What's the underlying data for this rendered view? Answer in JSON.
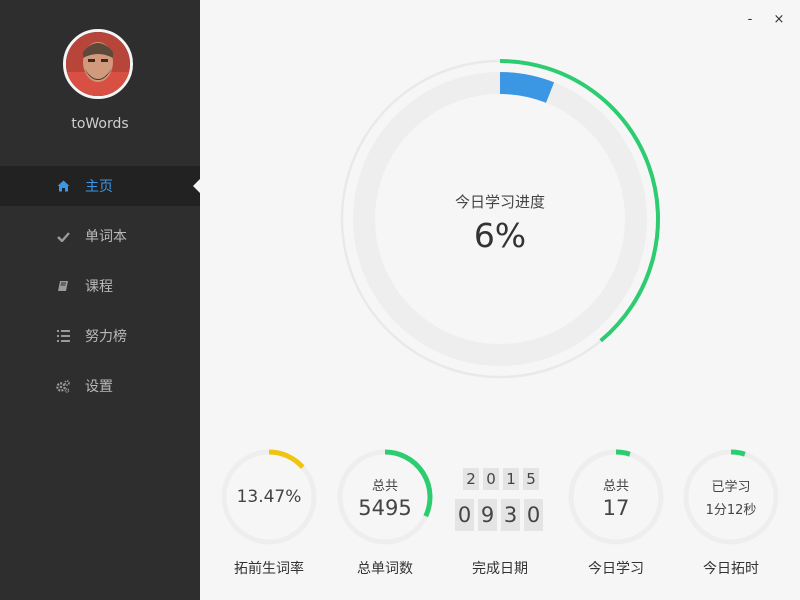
{
  "app": {
    "username": "toWords"
  },
  "window": {
    "minimize": "-",
    "close": "×"
  },
  "sidebar": {
    "items": [
      {
        "label": "主页",
        "icon": "home-icon",
        "active": true
      },
      {
        "label": "单词本",
        "icon": "check-icon",
        "active": false
      },
      {
        "label": "课程",
        "icon": "book-icon",
        "active": false
      },
      {
        "label": "努力榜",
        "icon": "list-icon",
        "active": false
      },
      {
        "label": "设置",
        "icon": "gears-icon",
        "active": false
      }
    ]
  },
  "progress": {
    "label": "今日学习进度",
    "value_text": "6%",
    "fraction": 0.06,
    "outer_fraction": 0.39
  },
  "stats": {
    "rate": {
      "value": "13.47%",
      "caption": "拓前生词率",
      "fraction": 0.1347
    },
    "total_words": {
      "top": "总共",
      "value": "5495",
      "caption": "总单词数",
      "fraction": 0.32
    },
    "finish_date": {
      "year_digits": [
        "2",
        "0",
        "1",
        "5"
      ],
      "date_digits": [
        "0",
        "9",
        "3",
        "0"
      ],
      "caption": "完成日期"
    },
    "today_learn": {
      "top": "总共",
      "value": "17",
      "caption": "今日学习",
      "fraction": 0.05
    },
    "today_time": {
      "top": "已学习",
      "value": "1分12秒",
      "caption": "今日拓时",
      "fraction": 0.05
    }
  },
  "colors": {
    "accent_blue": "#3b97e3",
    "green": "#2ecc71",
    "yellow": "#f1c40f",
    "sidebar_bg": "#2e2e2e",
    "track": "#eeeeee"
  }
}
